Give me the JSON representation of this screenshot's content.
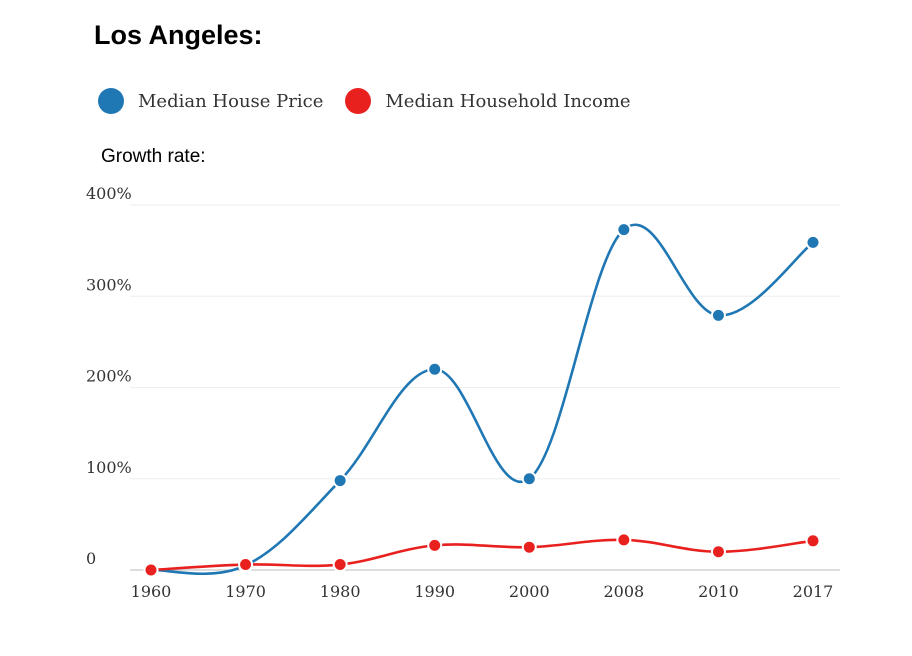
{
  "header": {
    "title": "Los Angeles:",
    "subtitle": "Growth rate:"
  },
  "legend": [
    {
      "label": "Median House Price",
      "color": "#1f77b4"
    },
    {
      "label": "Median Household Income",
      "color": "#e8211f"
    }
  ],
  "chart_data": {
    "type": "line",
    "title": "Los Angeles:",
    "ylabel": "Growth rate:",
    "categories": [
      "1960",
      "1970",
      "1980",
      "1990",
      "2000",
      "2008",
      "2010",
      "2017"
    ],
    "y_ticks": [
      {
        "value": 0,
        "label": "0"
      },
      {
        "value": 100,
        "label": "100%"
      },
      {
        "value": 200,
        "label": "200%"
      },
      {
        "value": 300,
        "label": "300%"
      },
      {
        "value": 400,
        "label": "400%"
      }
    ],
    "ylim": [
      0,
      400
    ],
    "series": [
      {
        "name": "Median House Price",
        "color": "#1f77b4",
        "values": [
          0,
          5,
          98,
          220,
          100,
          373,
          279,
          359
        ]
      },
      {
        "name": "Median Household Income",
        "color": "#e8211f",
        "values": [
          0,
          6,
          6,
          27,
          25,
          33,
          20,
          32
        ]
      }
    ],
    "grid": true
  }
}
